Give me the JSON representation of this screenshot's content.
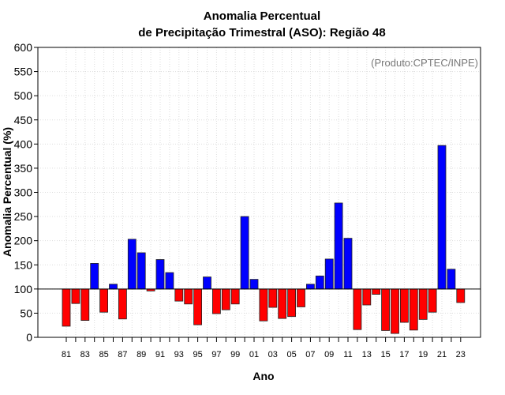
{
  "chart_data": {
    "type": "bar",
    "title_line1": "Anomalia Percentual",
    "title_line2": "de Precipitação Trimestral (ASO): Região 48",
    "xlabel": "Ano",
    "ylabel": "Anomalia Percentual (%)",
    "annotation": "(Produto:CPTEC/INPE)",
    "ylim": [
      0,
      600
    ],
    "baseline": 100,
    "yticks": [
      0,
      50,
      100,
      150,
      200,
      250,
      300,
      350,
      400,
      450,
      500,
      550,
      600
    ],
    "xtick_labels": [
      "81",
      "83",
      "85",
      "87",
      "89",
      "91",
      "93",
      "95",
      "97",
      "99",
      "01",
      "03",
      "05",
      "07",
      "09",
      "11",
      "13",
      "15",
      "17",
      "19",
      "21",
      "23"
    ],
    "categories": [
      "1981",
      "1982",
      "1983",
      "1984",
      "1985",
      "1986",
      "1987",
      "1988",
      "1989",
      "1990",
      "1991",
      "1992",
      "1993",
      "1994",
      "1995",
      "1996",
      "1997",
      "1998",
      "1999",
      "2000",
      "2001",
      "2002",
      "2003",
      "2004",
      "2005",
      "2006",
      "2007",
      "2008",
      "2009",
      "2010",
      "2011",
      "2012",
      "2013",
      "2014",
      "2015",
      "2016",
      "2017",
      "2018",
      "2019",
      "2020",
      "2021",
      "2022",
      "2023"
    ],
    "values": [
      23,
      70,
      35,
      153,
      52,
      110,
      38,
      203,
      175,
      96,
      161,
      134,
      75,
      69,
      26,
      125,
      49,
      57,
      69,
      250,
      120,
      34,
      62,
      39,
      43,
      63,
      110,
      127,
      162,
      278,
      205,
      16,
      67,
      89,
      14,
      8,
      31,
      15,
      37,
      52,
      397,
      141,
      72
    ],
    "colors": {
      "above": "#0000ff",
      "below": "#ff0000"
    },
    "grid": true
  }
}
